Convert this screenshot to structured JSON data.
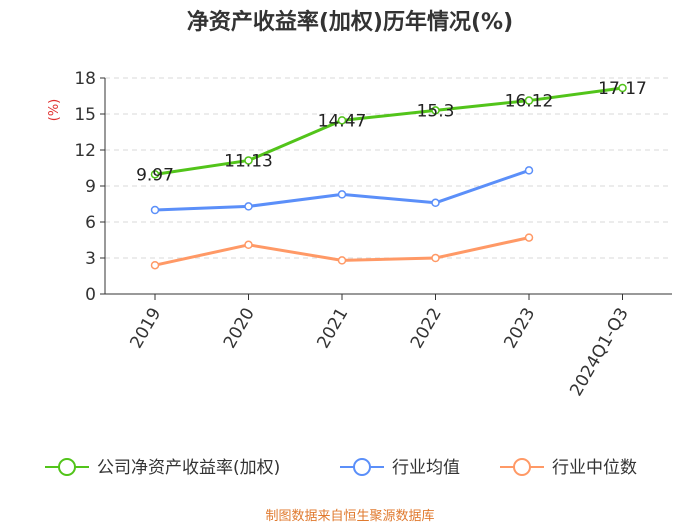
{
  "chart_data": {
    "type": "line",
    "title": "净资产收益率(加权)历年情况(%)",
    "ylabel": "(%)",
    "xlabel": "",
    "categories": [
      "2019",
      "2020",
      "2021",
      "2022",
      "2023",
      "2024Q1-Q3"
    ],
    "ylim": [
      0,
      18
    ],
    "yticks": [
      "0",
      "3",
      "6",
      "9",
      "12",
      "15",
      "18"
    ],
    "grid": true,
    "legend_position": "bottom",
    "series": [
      {
        "name": "公司净资产收益率(加权)",
        "color": "#52c41a",
        "values": [
          9.97,
          11.13,
          14.47,
          15.3,
          16.12,
          17.17
        ],
        "labels": [
          "9.97",
          "11.13",
          "14.47",
          "15.3",
          "16.12",
          "17.17"
        ]
      },
      {
        "name": "行业均值",
        "color": "#5b8ff9",
        "values": [
          7.0,
          7.3,
          8.3,
          7.6,
          10.3,
          null
        ]
      },
      {
        "name": "行业中位数",
        "color": "#ff9966",
        "values": [
          2.4,
          4.1,
          2.8,
          3.0,
          4.7,
          null
        ]
      }
    ]
  },
  "footer": "制图数据来自恒生聚源数据库"
}
